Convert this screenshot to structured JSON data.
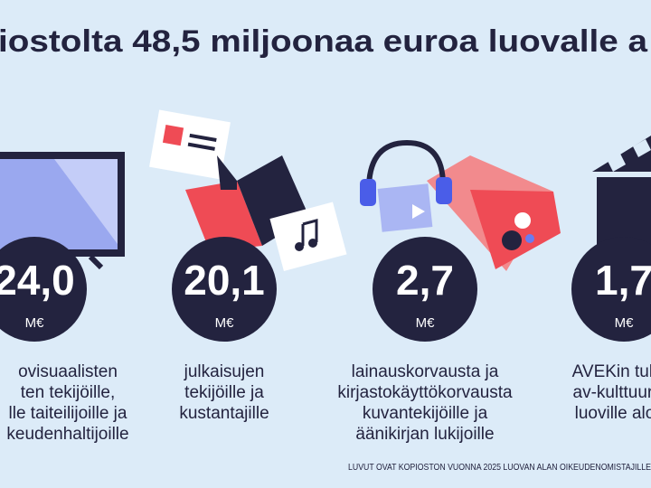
{
  "header": {
    "title": "iostolta 48,5 miljoonaa euroa luovalle a"
  },
  "items": [
    {
      "amount": "24,0",
      "unit": "M€",
      "lines": [
        "ovisuaalisten",
        "ten tekijöille,",
        "lle taiteilijoille ja",
        "keudenhaltijoille"
      ]
    },
    {
      "amount": "20,1",
      "unit": "M€",
      "lines": [
        "julkaisujen",
        "tekijöille ja",
        "kustantajille"
      ]
    },
    {
      "amount": "2,7",
      "unit": "M€",
      "lines": [
        "lainauskorvausta ja",
        "kirjastokäyttökorvausta",
        "kuvantekijöille ja",
        "äänikirjan lukijoille"
      ]
    },
    {
      "amount": "1,7",
      "unit": "M€",
      "lines": [
        "AVEKin tuk",
        "av-kulttuuri",
        "luoville alo"
      ]
    }
  ],
  "footer": {
    "note": "LUVUT OVAT KOPIOSTON VUONNA 2025 LUOVAN ALAN OIKEUDENOMISTAJILLE"
  }
}
